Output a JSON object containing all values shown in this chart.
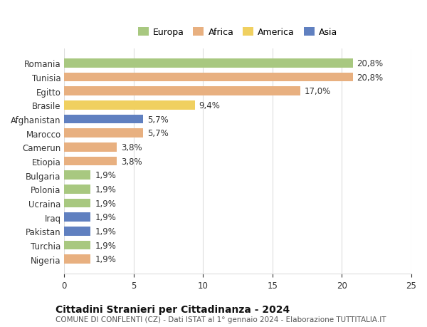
{
  "countries": [
    "Romania",
    "Tunisia",
    "Egitto",
    "Brasile",
    "Afghanistan",
    "Marocco",
    "Camerun",
    "Etiopia",
    "Bulgaria",
    "Polonia",
    "Ucraina",
    "Iraq",
    "Pakistan",
    "Turchia",
    "Nigeria"
  ],
  "values": [
    20.8,
    20.8,
    17.0,
    9.4,
    5.7,
    5.7,
    3.8,
    3.8,
    1.9,
    1.9,
    1.9,
    1.9,
    1.9,
    1.9,
    1.9
  ],
  "continents": [
    "Europa",
    "Africa",
    "Africa",
    "America",
    "Asia",
    "Africa",
    "Africa",
    "Africa",
    "Europa",
    "Europa",
    "Europa",
    "Asia",
    "Asia",
    "Europa",
    "Africa"
  ],
  "colors": {
    "Europa": "#a8c880",
    "Africa": "#e8b080",
    "America": "#f0d060",
    "Asia": "#6080c0"
  },
  "legend_colors": {
    "Europa": "#a8c880",
    "Africa": "#e8b080",
    "America": "#f0d060",
    "Asia": "#6080c0"
  },
  "title": "Cittadini Stranieri per Cittadinanza - 2024",
  "subtitle": "COMUNE DI CONFLENTI (CZ) - Dati ISTAT al 1° gennaio 2024 - Elaborazione TUTTITALIA.IT",
  "xlim": [
    0,
    25
  ],
  "xticks": [
    0,
    5,
    10,
    15,
    20,
    25
  ],
  "background_color": "#ffffff",
  "grid_color": "#dddddd",
  "bar_height": 0.65,
  "label_fontsize": 8.5,
  "tick_fontsize": 8.5,
  "title_fontsize": 10,
  "subtitle_fontsize": 7.5
}
